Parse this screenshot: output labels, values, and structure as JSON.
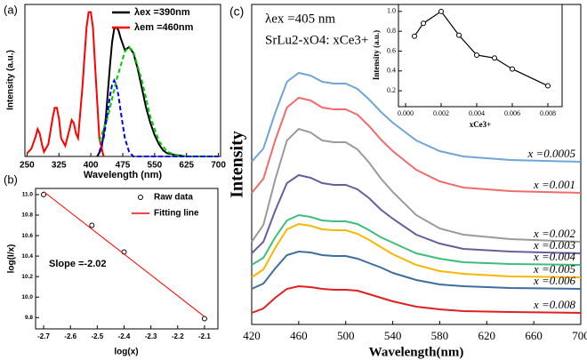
{
  "chart_data": [
    {
      "type": "line",
      "panel_label": "(a)",
      "xlabel": "Wavelength (nm)",
      "ylabel": "Intensity (a.u.)",
      "xlim": [
        245,
        705
      ],
      "ylim": [
        0,
        1
      ],
      "xticks": [
        250,
        325,
        400,
        475,
        550,
        625,
        700
      ],
      "series": [
        {
          "name": "λex =390nm",
          "color": "#000000",
          "style": "line",
          "x": [
            415,
            425,
            435,
            445,
            450,
            455,
            460,
            465,
            470,
            480,
            490,
            500,
            510,
            520,
            530,
            540,
            550,
            560,
            570,
            580,
            600,
            625,
            650,
            700
          ],
          "values": [
            0,
            0.05,
            0.25,
            0.6,
            0.75,
            0.84,
            0.85,
            0.83,
            0.78,
            0.7,
            0.72,
            0.68,
            0.58,
            0.45,
            0.32,
            0.22,
            0.14,
            0.08,
            0.04,
            0.02,
            0.01,
            0,
            0,
            0
          ]
        },
        {
          "name": "λem =460nm",
          "color": "#ff0000",
          "style": "line",
          "x": [
            250,
            260,
            270,
            275,
            280,
            285,
            290,
            300,
            310,
            315,
            320,
            325,
            330,
            340,
            350,
            355,
            360,
            365,
            370,
            380,
            390,
            395,
            400,
            405,
            410,
            420,
            430
          ],
          "values": [
            0.02,
            0.05,
            0.13,
            0.18,
            0.15,
            0.08,
            0.03,
            0.08,
            0.25,
            0.32,
            0.32,
            0.25,
            0.12,
            0.07,
            0.18,
            0.24,
            0.22,
            0.15,
            0.12,
            0.45,
            0.85,
            0.95,
            0.95,
            0.85,
            0.6,
            0.12,
            0
          ]
        },
        {
          "color": "#00cc00",
          "style": "dashed",
          "x": [
            420,
            440,
            460,
            480,
            490,
            500,
            520,
            540,
            560,
            580,
            600,
            625,
            650,
            700
          ],
          "values": [
            0.1,
            0.26,
            0.5,
            0.69,
            0.72,
            0.69,
            0.5,
            0.26,
            0.1,
            0.03,
            0.01,
            0,
            0,
            0
          ]
        },
        {
          "color": "#0000ff",
          "style": "dashed",
          "x": [
            420,
            430,
            440,
            445,
            450,
            455,
            460,
            465,
            470,
            480,
            490,
            500,
            550,
            625,
            700
          ],
          "values": [
            0.03,
            0.12,
            0.3,
            0.4,
            0.47,
            0.5,
            0.47,
            0.4,
            0.3,
            0.12,
            0.03,
            0,
            0,
            0,
            0
          ]
        }
      ]
    },
    {
      "type": "scatter",
      "panel_label": "(b)",
      "xlabel": "log(x)",
      "ylabel": "log(I/x)",
      "annotations": [
        "Slope =-2.02"
      ],
      "xlim": [
        -2.73,
        -2.05
      ],
      "ylim": [
        9.69,
        11.06
      ],
      "xticks": [
        -2.7,
        -2.6,
        -2.5,
        -2.4,
        -2.3,
        -2.2,
        -2.1
      ],
      "yticks": [
        {
          "value": 11.0,
          "label": "11.0"
        },
        10.8,
        10.6,
        10.4,
        10.2,
        {
          "value": 10.0,
          "label": "10.0"
        },
        9.8
      ],
      "series": [
        {
          "name": "Raw data",
          "color": "#000000",
          "style": "marker",
          "x": [
            -2.7,
            -2.52,
            -2.4,
            -2.1
          ],
          "values": [
            11.0,
            10.7,
            10.44,
            9.79
          ]
        },
        {
          "name": "Fitting line",
          "color": "#ff0000",
          "style": "line",
          "x": [
            -2.7,
            -2.1
          ],
          "values": [
            11.03,
            9.81
          ]
        }
      ]
    },
    {
      "type": "line",
      "panel_label": "(c)",
      "xlabel": "Wavelength(nm)",
      "ylabel": "Intensity",
      "annotations": [
        "λex =405 nm",
        "SrLu2-xO4: xCe3+"
      ],
      "xlim": [
        420,
        700
      ],
      "ylim": [
        0,
        36
      ],
      "xticks": [
        420,
        460,
        500,
        540,
        580,
        620,
        660,
        700
      ],
      "x": [
        420,
        430,
        440,
        450,
        460,
        470,
        480,
        490,
        500,
        510,
        520,
        530,
        540,
        560,
        580,
        600,
        640,
        700
      ],
      "series": [
        {
          "name": "x =0.0005",
          "color": "#6fa6d6",
          "style": "line",
          "values": [
            18.3,
            19.8,
            23.8,
            27.3,
            28.3,
            28.0,
            27.3,
            27.1,
            27.1,
            26.5,
            25.3,
            23.9,
            22.7,
            20.7,
            19.5,
            18.9,
            18.5,
            18.3
          ]
        },
        {
          "name": "x =0.001",
          "color": "#f26b6b",
          "style": "line",
          "values": [
            14.8,
            16.4,
            20.7,
            24.4,
            25.5,
            25.2,
            24.4,
            24.2,
            24.2,
            23.6,
            22.3,
            20.8,
            19.5,
            17.4,
            16.1,
            15.4,
            15.0,
            14.8
          ]
        },
        {
          "name": "x =0.002",
          "color": "#9a9a9a",
          "style": "line",
          "values": [
            9.3,
            11.2,
            16.3,
            20.7,
            22.0,
            21.6,
            20.7,
            20.5,
            20.5,
            19.7,
            18.2,
            16.4,
            14.9,
            12.3,
            10.8,
            10.1,
            9.6,
            9.3
          ]
        },
        {
          "name": "x =0.003",
          "color": "#6b5b9e",
          "style": "line",
          "values": [
            8.0,
            9.3,
            12.8,
            15.9,
            16.8,
            16.5,
            15.9,
            15.7,
            15.7,
            15.2,
            14.2,
            12.9,
            11.9,
            10.1,
            9.1,
            8.5,
            8.2,
            8.0
          ]
        },
        {
          "name": "x =0.004",
          "color": "#3dbf7a",
          "style": "line",
          "values": [
            6.7,
            7.5,
            9.8,
            11.7,
            12.3,
            12.1,
            11.7,
            11.6,
            11.6,
            11.3,
            10.6,
            9.8,
            9.2,
            8.0,
            7.4,
            7.0,
            6.8,
            6.7
          ]
        },
        {
          "name": "x =0.005",
          "color": "#f5b800",
          "style": "line",
          "values": [
            5.3,
            6.2,
            8.6,
            10.7,
            11.3,
            11.1,
            10.7,
            10.6,
            10.6,
            10.2,
            9.5,
            8.7,
            7.9,
            6.7,
            6.0,
            5.7,
            5.4,
            5.3
          ]
        },
        {
          "name": "x =0.006",
          "color": "#3c6e9f",
          "style": "line",
          "values": [
            4.0,
            4.6,
            6.3,
            7.8,
            8.2,
            8.1,
            7.8,
            7.7,
            7.7,
            7.4,
            6.9,
            6.4,
            5.8,
            5.0,
            4.5,
            4.3,
            4.1,
            4.0
          ]
        },
        {
          "name": "x =0.008",
          "color": "#e02020",
          "style": "line",
          "values": [
            1.3,
            1.8,
            3.0,
            4.0,
            4.3,
            4.2,
            4.0,
            3.9,
            3.9,
            3.8,
            3.4,
            3.0,
            2.6,
            2.0,
            1.7,
            1.5,
            1.4,
            1.3
          ]
        }
      ]
    },
    {
      "type": "line",
      "xlabel": "xCe3+",
      "ylabel": "Intensity (a.u.)",
      "xlim": [
        -0.0004,
        0.0088
      ],
      "ylim": [
        0.04,
        1.07
      ],
      "xticks": [
        {
          "value": 0,
          "label": "0.000"
        },
        {
          "value": 0.002,
          "label": "0.002"
        },
        {
          "value": 0.004,
          "label": "0.004"
        },
        {
          "value": 0.006,
          "label": "0.006"
        },
        {
          "value": 0.008,
          "label": "0.008"
        }
      ],
      "yticks": [
        0.2,
        0.4,
        0.6,
        0.8,
        {
          "value": 1.0,
          "label": "1.0"
        }
      ],
      "series": [
        {
          "color": "#000000",
          "style": "line-marker",
          "x": [
            0.0005,
            0.001,
            0.002,
            0.003,
            0.004,
            0.005,
            0.006,
            0.008
          ],
          "values": [
            0.75,
            0.88,
            1.0,
            0.76,
            0.56,
            0.53,
            0.42,
            0.25
          ]
        }
      ]
    }
  ]
}
